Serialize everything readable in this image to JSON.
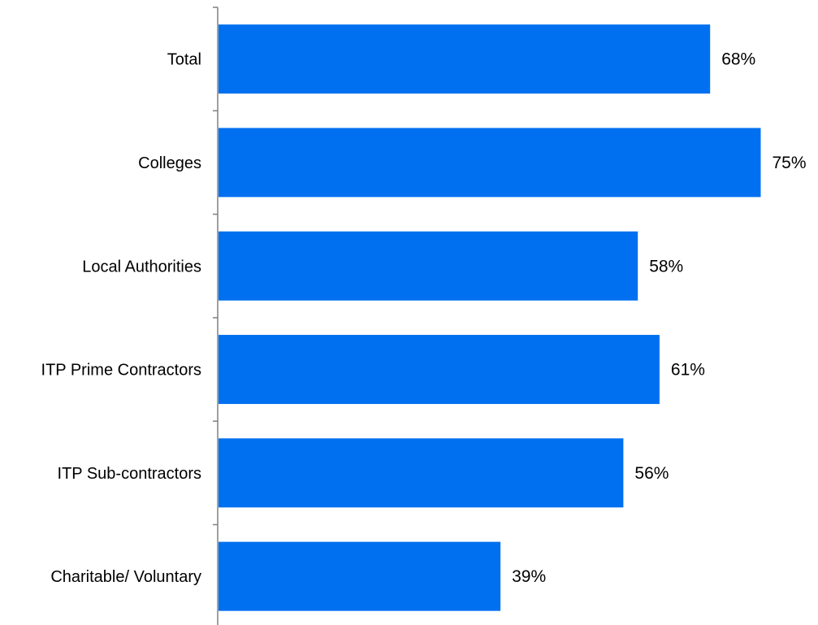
{
  "chart_data": {
    "type": "bar",
    "orientation": "horizontal",
    "categories": [
      "Total",
      "Colleges",
      "Local Authorities",
      "ITP Prime Contractors",
      "ITP Sub-contractors",
      "Charitable/ Voluntary"
    ],
    "values": [
      68,
      75,
      58,
      61,
      56,
      39
    ],
    "value_labels": [
      "68%",
      "75%",
      "58%",
      "61%",
      "56%",
      "39%"
    ],
    "value_unit": "%",
    "xlim": [
      0,
      100
    ],
    "grid": false,
    "legend": "none",
    "bar_color": "#0070F0"
  }
}
